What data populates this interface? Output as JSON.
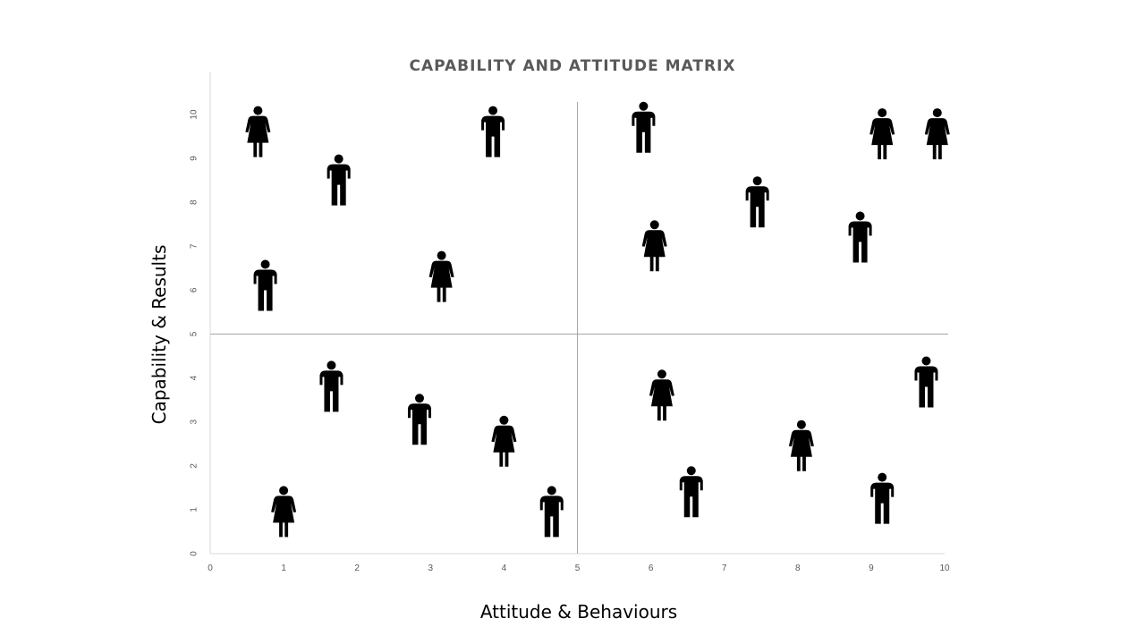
{
  "chart_data": {
    "type": "scatter",
    "title": "CAPABILITY AND ATTITUDE MATRIX",
    "xlabel": "Attitude & Behaviours",
    "ylabel": "Capability & Results",
    "xlim": [
      0,
      10
    ],
    "ylim": [
      0,
      10
    ],
    "x_ticks": [
      "0",
      "1",
      "2",
      "3",
      "4",
      "5",
      "6",
      "7",
      "8",
      "9",
      "10"
    ],
    "y_ticks": [
      "0",
      "1",
      "2",
      "3",
      "4",
      "5",
      "6",
      "7",
      "8",
      "9",
      "10"
    ],
    "quadrant_dividers": {
      "x": 5,
      "y": 5
    },
    "grid": false,
    "legend": "none",
    "marker_color": "#000000",
    "divider_color": "#a6a6a6",
    "points": [
      {
        "x": 0.65,
        "y": 9.6,
        "marker": "female-person-icon"
      },
      {
        "x": 1.75,
        "y": 8.5,
        "marker": "male-person-icon"
      },
      {
        "x": 3.85,
        "y": 9.6,
        "marker": "male-person-icon"
      },
      {
        "x": 0.75,
        "y": 6.1,
        "marker": "male-person-icon"
      },
      {
        "x": 3.15,
        "y": 6.3,
        "marker": "female-person-icon"
      },
      {
        "x": 5.9,
        "y": 9.7,
        "marker": "male-person-icon"
      },
      {
        "x": 7.45,
        "y": 8.0,
        "marker": "male-person-icon"
      },
      {
        "x": 9.15,
        "y": 9.55,
        "marker": "female-person-icon"
      },
      {
        "x": 9.9,
        "y": 9.55,
        "marker": "female-person-icon"
      },
      {
        "x": 6.05,
        "y": 7.0,
        "marker": "female-person-icon"
      },
      {
        "x": 8.85,
        "y": 7.2,
        "marker": "male-person-icon"
      },
      {
        "x": 1.65,
        "y": 3.8,
        "marker": "male-person-icon"
      },
      {
        "x": 2.85,
        "y": 3.05,
        "marker": "male-person-icon"
      },
      {
        "x": 4.0,
        "y": 2.55,
        "marker": "female-person-icon"
      },
      {
        "x": 1.0,
        "y": 0.95,
        "marker": "female-person-icon"
      },
      {
        "x": 4.65,
        "y": 0.95,
        "marker": "male-person-icon"
      },
      {
        "x": 6.15,
        "y": 3.6,
        "marker": "female-person-icon"
      },
      {
        "x": 6.55,
        "y": 1.4,
        "marker": "male-person-icon"
      },
      {
        "x": 8.05,
        "y": 2.45,
        "marker": "female-person-icon"
      },
      {
        "x": 9.15,
        "y": 1.25,
        "marker": "male-person-icon"
      },
      {
        "x": 9.75,
        "y": 3.9,
        "marker": "male-person-icon"
      }
    ]
  }
}
